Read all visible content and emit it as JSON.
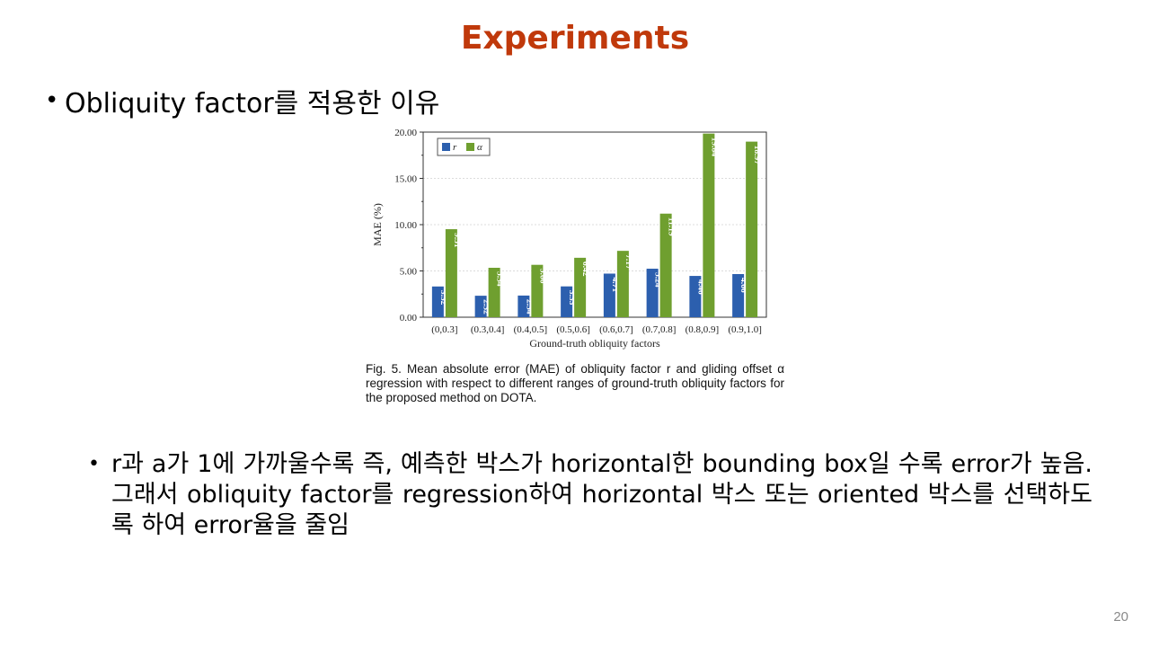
{
  "slide": {
    "title": "Experiments",
    "bullet_main": "Obliquity factor를 적용한 이유",
    "caption": "Fig. 5. Mean absolute error (MAE) of obliquity factor r and gliding offset α regression with respect to different ranges of ground-truth obliquity factors for the proposed method on DOTA.",
    "bullet_sub": "r과 a가 1에 가까울수록 즉, 예측한 박스가 horizontal한 bounding box일 수록 error가 높음. 그래서 obliquity factor를 regression하여 horizontal 박스 또는 oriented 박스를 선택하도록 하여 error율을 줄임",
    "page_number": "20",
    "bullet_symbol": "•"
  },
  "chart_data": {
    "type": "bar",
    "categories": [
      "(0,0.3]",
      "(0.3,0.4]",
      "(0.4,0.5]",
      "(0.5,0.6]",
      "(0.6,0.7]",
      "(0.7,0.8]",
      "(0.8,0.9]",
      "(0.9,1.0]"
    ],
    "series": [
      {
        "name": "r",
        "values": [
          3.32,
          2.32,
          2.34,
          3.33,
          4.71,
          5.24,
          4.46,
          4.66
        ],
        "labels": [
          "3.32",
          "2.32",
          "2.34",
          "3.33",
          "4.71",
          "5.24",
          "4.46",
          "4.66"
        ],
        "color": "#2c5fae"
      },
      {
        "name": "α",
        "values": [
          9.51,
          5.34,
          5.66,
          6.42,
          7.17,
          11.19,
          19.84,
          18.97
        ],
        "labels": [
          "9.51",
          "5.34",
          "5.66",
          "6.42",
          "7.17",
          "11.19",
          "19.84",
          "18.97"
        ],
        "color": "#6f9f2f"
      }
    ],
    "xlabel": "Ground-truth obliquity factors",
    "ylabel": "MAE (%)",
    "ylim": [
      0,
      20
    ],
    "yticks": [
      0,
      5,
      10,
      15,
      20
    ],
    "ytick_labels": [
      "0.00",
      "5.00",
      "10.00",
      "15.00",
      "20.00"
    ],
    "grid": true,
    "legend": "top-left"
  }
}
